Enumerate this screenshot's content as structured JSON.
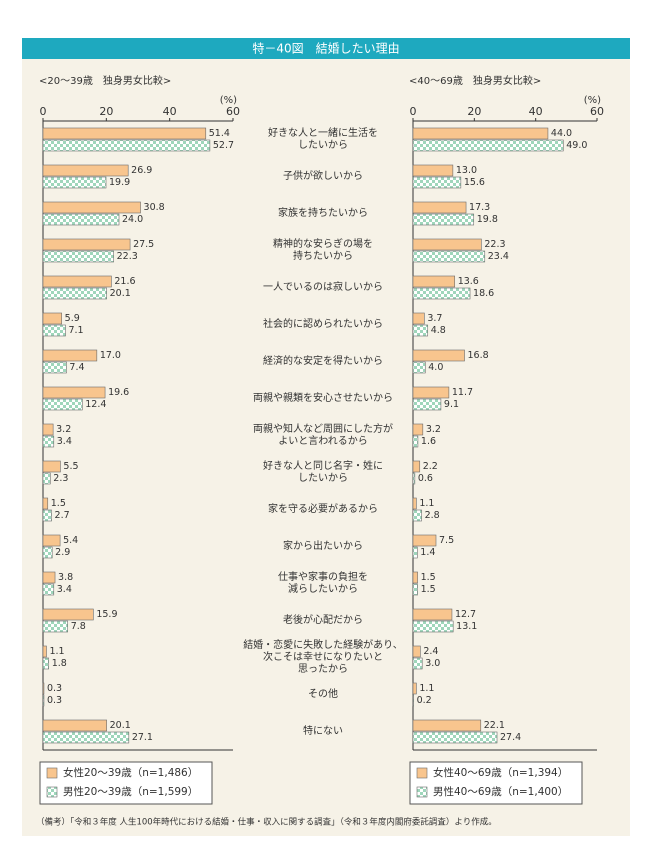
{
  "chart_data": {
    "type": "bar",
    "orientation": "horizontal",
    "title": "特－40図　結婚したい理由",
    "note": "（備考）「令和３年度 人生100年時代における結婚・仕事・収入に関する調査」（令和３年度内閣府委託調査）より作成。",
    "categories": [
      "好きな人と一緒に生活を\nしたいから",
      "子供が欲しいから",
      "家族を持ちたいから",
      "精神的な安らぎの場を\n持ちたいから",
      "一人でいるのは寂しいから",
      "社会的に認められたいから",
      "経済的な安定を得たいから",
      "両親や親類を安心させたいから",
      "両親や知人など周囲にした方が\nよいと言われるから",
      "好きな人と同じ名字・姓に\nしたいから",
      "家を守る必要があるから",
      "家から出たいから",
      "仕事や家事の負担を\n減らしたいから",
      "老後が心配だから",
      "結婚・恋愛に失敗した経験があり、\n次こそは幸せになりたいと\n思ったから",
      "その他",
      "特にない"
    ],
    "panels": [
      {
        "subtitle": "<20～39歳　独身男女比較>",
        "unit": "(%)",
        "xlim": [
          0,
          60
        ],
        "xticks": [
          0,
          20,
          40,
          60
        ],
        "series": [
          {
            "name": "女性20～39歳（n=1,486）",
            "color": "#f8c58e",
            "pattern": "solid",
            "values": [
              51.4,
              26.9,
              30.8,
              27.5,
              21.6,
              5.9,
              17.0,
              19.6,
              3.2,
              5.5,
              1.5,
              5.4,
              3.8,
              15.9,
              1.1,
              0.3,
              20.1
            ],
            "value_labels": [
              "51.4",
              "26.9",
              "30.8",
              "27.5",
              "21.6",
              "5.9",
              "17.0",
              "19.6",
              "3.2",
              "5.5",
              "1.5",
              "5.4",
              "3.8",
              "15.9",
              "1.1",
              "0.3",
              "20.1"
            ]
          },
          {
            "name": "男性20～39歳（n=1,599）",
            "color": "#9fd6bb",
            "pattern": "checker",
            "values": [
              52.7,
              19.9,
              24.0,
              22.3,
              20.1,
              7.1,
              7.4,
              12.4,
              3.4,
              2.3,
              2.7,
              2.9,
              3.4,
              7.8,
              1.8,
              0.3,
              27.1
            ],
            "value_labels": [
              "52.7",
              "19.9",
              "24.0",
              "22.3",
              "20.1",
              "7.1",
              "7.4",
              "12.4",
              "3.4",
              "2.3",
              "2.7",
              "2.9",
              "3.4",
              "7.8",
              "1.8",
              "0.3",
              "27.1"
            ]
          }
        ]
      },
      {
        "subtitle": "<40～69歳　独身男女比較>",
        "unit": "(%)",
        "xlim": [
          0,
          60
        ],
        "xticks": [
          0,
          20,
          40,
          60
        ],
        "series": [
          {
            "name": "女性40～69歳（n=1,394）",
            "color": "#f8c58e",
            "pattern": "solid",
            "values": [
              44.0,
              13.0,
              17.3,
              22.3,
              13.6,
              3.7,
              16.8,
              11.7,
              3.2,
              2.2,
              1.1,
              7.5,
              1.5,
              12.7,
              2.4,
              1.1,
              22.1
            ],
            "value_labels": [
              "44.0",
              "13.0",
              "17.3",
              "22.3",
              "13.6",
              "3.7",
              "16.8",
              "11.7",
              "3.2",
              "2.2",
              "1.1",
              "7.5",
              "1.5",
              "12.7",
              "2.4",
              "1.1",
              "22.1"
            ]
          },
          {
            "name": "男性40～69歳（n=1,400）",
            "color": "#9fd6bb",
            "pattern": "checker",
            "values": [
              49.0,
              15.6,
              19.8,
              23.4,
              18.6,
              4.8,
              4.0,
              9.1,
              1.6,
              0.6,
              2.8,
              1.4,
              1.5,
              13.1,
              3.0,
              0.2,
              27.4
            ],
            "value_labels": [
              "49.0",
              "15.6",
              "19.8",
              "23.4",
              "18.6",
              "4.8",
              "4.0",
              "9.1",
              "1.6",
              "0.6",
              "2.8",
              "1.4",
              "1.5",
              "13.1",
              "3.0",
              "0.2",
              "27.4"
            ]
          }
        ]
      }
    ]
  }
}
